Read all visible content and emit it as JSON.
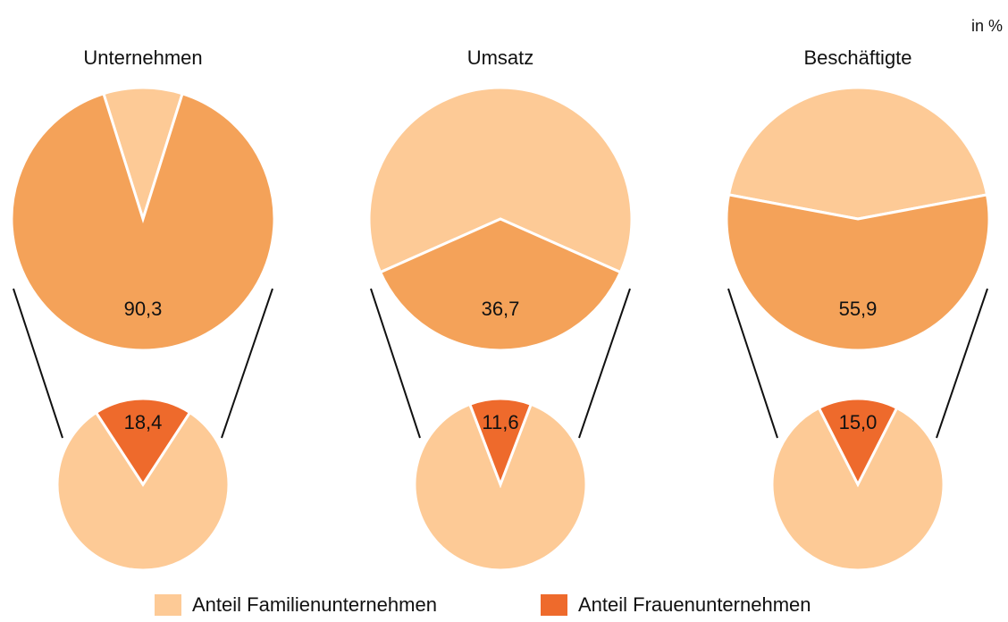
{
  "chart_data": {
    "type": "pie-of-pie",
    "unit": "in %",
    "categories": [
      "Unternehmen",
      "Umsatz",
      "Beschäftigte"
    ],
    "highlight_color": "#f4a259",
    "series": [
      {
        "name": "Anteil Familienunternehmen",
        "color": "#fdca96",
        "values": [
          90.3,
          36.7,
          55.9
        ],
        "value_labels": [
          "90,3",
          "36,7",
          "55,9"
        ]
      },
      {
        "name": "Anteil Frauenunternehmen",
        "color": "#ee6a2c",
        "values": [
          18.4,
          11.6,
          15.0
        ],
        "value_labels": [
          "18,4",
          "11,6",
          "15,0"
        ]
      }
    ]
  }
}
